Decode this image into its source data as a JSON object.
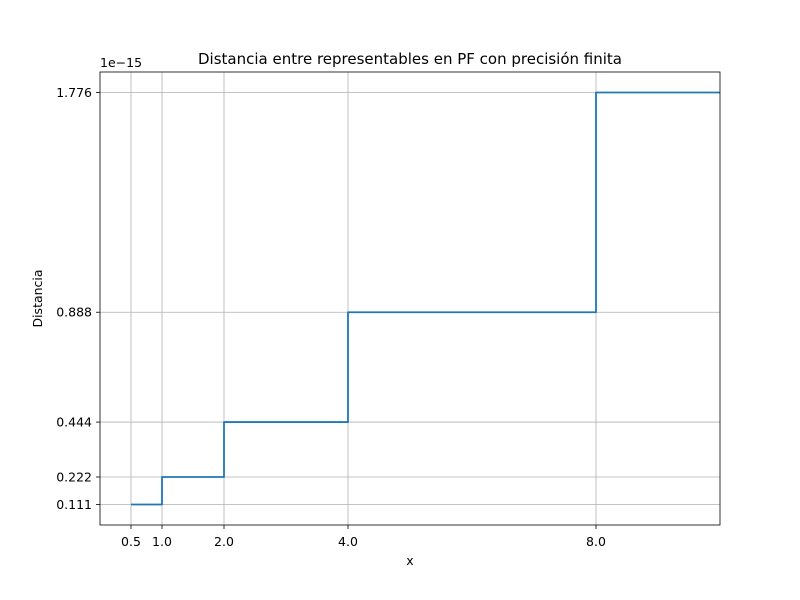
{
  "chart_data": {
    "type": "line",
    "title": "Distancia entre representables en PF con precisión finita",
    "xlabel": "x",
    "ylabel": "Distancia",
    "y_offset_label": "1e−15",
    "xlim": [
      0.0,
      10.0
    ],
    "ylim": [
      0.028,
      1.859
    ],
    "x_ticks": [
      0.5,
      1.0,
      2.0,
      4.0,
      8.0
    ],
    "x_tick_labels": [
      "0.5",
      "1.0",
      "2.0",
      "4.0",
      "8.0"
    ],
    "y_ticks": [
      0.111,
      0.222,
      0.444,
      0.888,
      1.776
    ],
    "y_tick_labels": [
      "0.111",
      "0.222",
      "0.444",
      "0.888",
      "1.776"
    ],
    "grid": true,
    "line_color": "#1f77b4",
    "series": [
      {
        "x": [
          0.5,
          1.0,
          1.0,
          2.0,
          2.0,
          4.0,
          4.0,
          8.0,
          8.0,
          10.0
        ],
        "values": [
          0.111,
          0.111,
          0.222,
          0.222,
          0.444,
          0.444,
          0.888,
          0.888,
          1.776,
          1.776
        ]
      }
    ]
  }
}
